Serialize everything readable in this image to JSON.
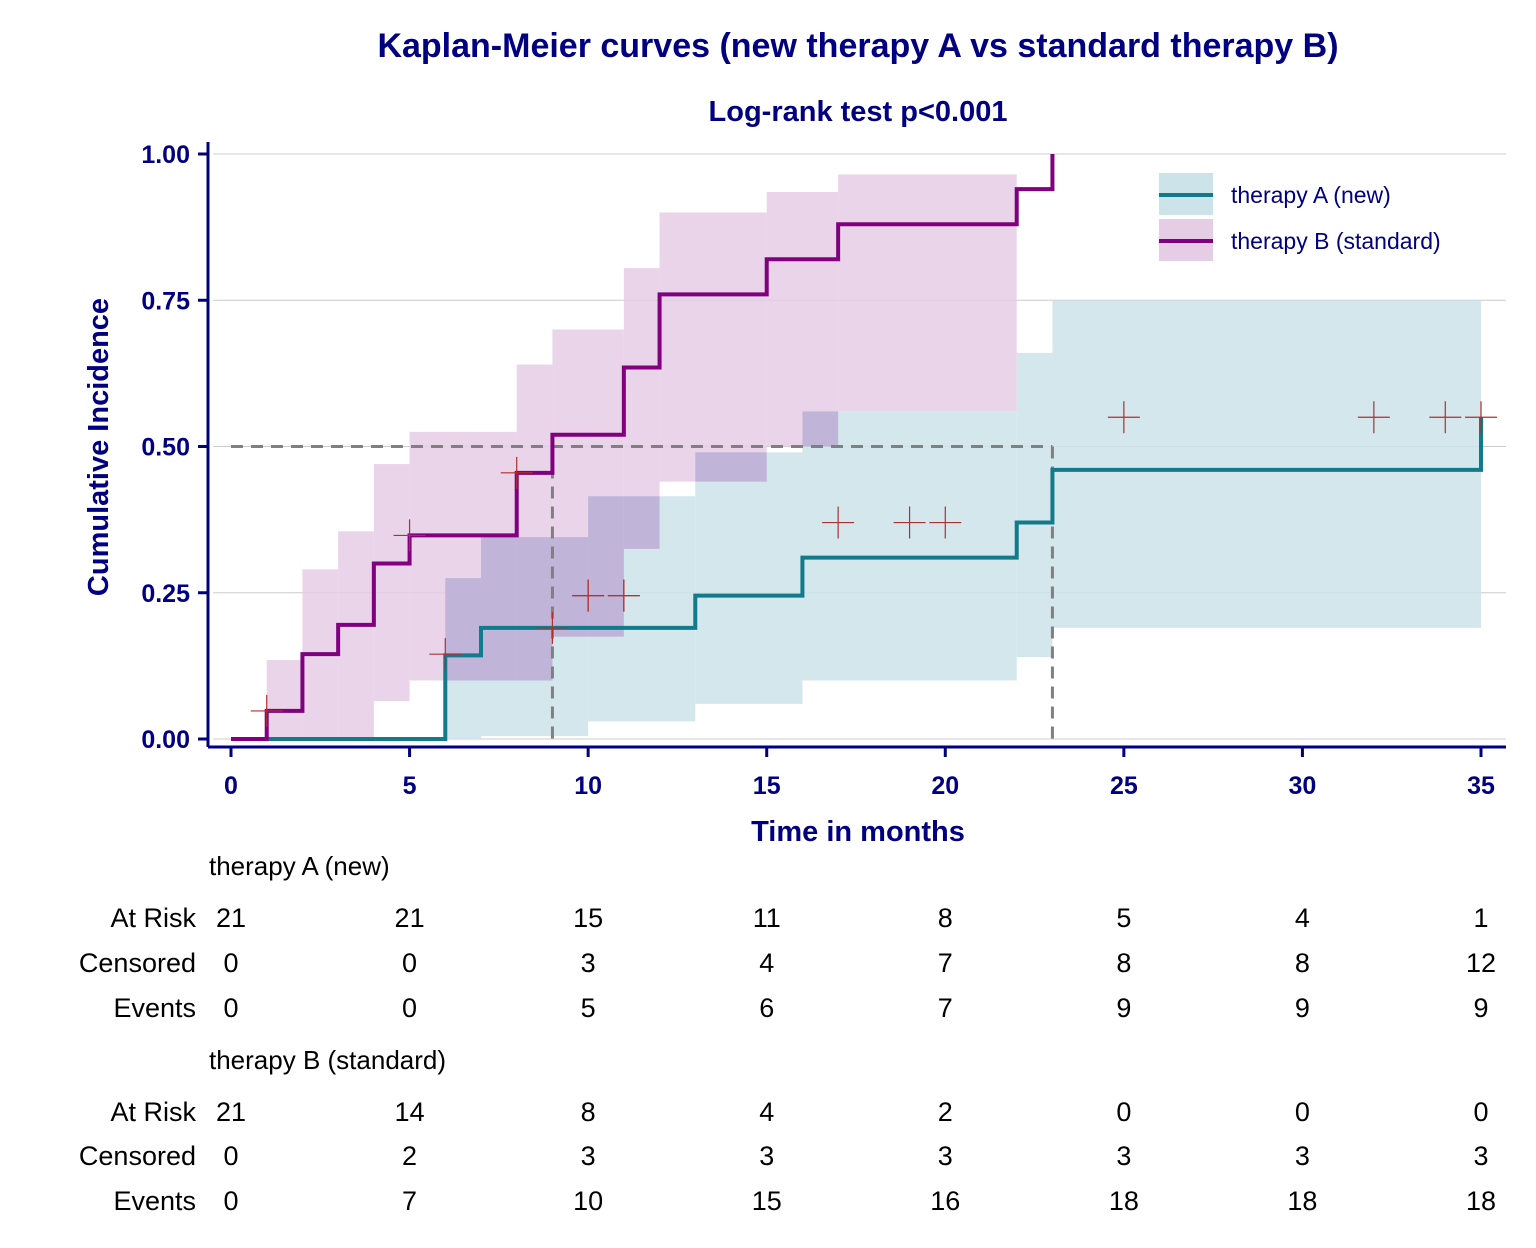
{
  "chart_data": {
    "type": "line",
    "subtype": "kaplan-meier-cumulative-incidence",
    "title": "Kaplan-Meier curves (new therapy A vs standard therapy B)",
    "subtitle": "Log-rank test p<0.001",
    "xlabel": "Time in months",
    "ylabel": "Cumulative Incidence",
    "xlim": [
      0,
      35
    ],
    "ylim": [
      0,
      1
    ],
    "x_ticks": [
      0,
      5,
      10,
      15,
      20,
      25,
      30,
      35
    ],
    "x_tick_labels": [
      "0",
      "5",
      "10",
      "15",
      "20",
      "25",
      "30",
      "35"
    ],
    "y_ticks": [
      0,
      0.25,
      0.5,
      0.75,
      1.0
    ],
    "y_tick_labels": [
      "0.00",
      "0.25",
      "0.50",
      "0.75",
      "1.00"
    ],
    "grid": "horizontal",
    "legend_position": "top-right",
    "colors": {
      "A_line": "#117A8B",
      "A_band": "#cce3ea",
      "B_line": "#800080",
      "B_band": "#e6cde6",
      "overlap": "#c0b5d8",
      "censor": "#b03030",
      "text": "#000080",
      "median_ref": "#808080"
    },
    "median_reference": {
      "y": 0.5,
      "x_B": 9,
      "x_A": 23
    },
    "series": [
      {
        "name": "therapy A (new)",
        "steps": [
          [
            0,
            0
          ],
          [
            6,
            0.143
          ],
          [
            7,
            0.19
          ],
          [
            10,
            0.19
          ],
          [
            13,
            0.245
          ],
          [
            16,
            0.31
          ],
          [
            22,
            0.37
          ],
          [
            23,
            0.46
          ],
          [
            35,
            0.55
          ]
        ],
        "band": [
          [
            6,
            0.0,
            0.275
          ],
          [
            7,
            0.005,
            0.345
          ],
          [
            10,
            0.03,
            0.415
          ],
          [
            13,
            0.06,
            0.49
          ],
          [
            16,
            0.1,
            0.56
          ],
          [
            22,
            0.14,
            0.66
          ],
          [
            23,
            0.19,
            0.75
          ],
          [
            35,
            0.19,
            0.75
          ]
        ],
        "censored": [
          [
            10,
            0.245
          ],
          [
            11,
            0.245
          ],
          [
            17,
            0.37
          ],
          [
            19,
            0.37
          ],
          [
            20,
            0.37
          ],
          [
            25,
            0.55
          ],
          [
            32,
            0.55
          ],
          [
            34,
            0.55
          ],
          [
            35,
            0.55
          ]
        ]
      },
      {
        "name": "therapy B (standard)",
        "steps": [
          [
            0,
            0
          ],
          [
            1,
            0.048
          ],
          [
            2,
            0.145
          ],
          [
            3,
            0.195
          ],
          [
            4,
            0.3
          ],
          [
            5,
            0.348
          ],
          [
            8,
            0.455
          ],
          [
            9,
            0.52
          ],
          [
            11,
            0.635
          ],
          [
            12,
            0.76
          ],
          [
            15,
            0.82
          ],
          [
            17,
            0.88
          ],
          [
            22,
            0.94
          ],
          [
            23,
            1.0
          ]
        ],
        "band": [
          [
            1,
            0.0,
            0.135
          ],
          [
            2,
            0.0,
            0.29
          ],
          [
            3,
            0.0,
            0.355
          ],
          [
            4,
            0.065,
            0.47
          ],
          [
            5,
            0.1,
            0.525
          ],
          [
            8,
            0.1,
            0.64
          ],
          [
            9,
            0.175,
            0.7
          ],
          [
            11,
            0.325,
            0.805
          ],
          [
            12,
            0.44,
            0.9
          ],
          [
            15,
            0.5,
            0.935
          ],
          [
            17,
            0.56,
            0.965
          ],
          [
            22,
            0.56,
            0.965
          ]
        ],
        "censored": [
          [
            1,
            0.048
          ],
          [
            5,
            0.348
          ],
          [
            6,
            0.145
          ],
          [
            8,
            0.455
          ],
          [
            9,
            0.19
          ],
          [
            10,
            0.245
          ],
          [
            11,
            0.245
          ]
        ]
      }
    ],
    "risk_table": {
      "times": [
        0,
        5,
        10,
        15,
        20,
        25,
        30,
        35
      ],
      "row_labels": [
        "At Risk",
        "Censored",
        "Events"
      ],
      "groups": [
        {
          "name": "therapy A (new)",
          "at_risk": [
            21,
            21,
            15,
            11,
            8,
            5,
            4,
            1
          ],
          "censored": [
            0,
            0,
            3,
            4,
            7,
            8,
            8,
            12
          ],
          "events": [
            0,
            0,
            5,
            6,
            7,
            9,
            9,
            9
          ]
        },
        {
          "name": "therapy B (standard)",
          "at_risk": [
            21,
            14,
            8,
            4,
            2,
            0,
            0,
            0
          ],
          "censored": [
            0,
            2,
            3,
            3,
            3,
            3,
            3,
            3
          ],
          "events": [
            0,
            7,
            10,
            15,
            16,
            18,
            18,
            18
          ]
        }
      ]
    }
  }
}
